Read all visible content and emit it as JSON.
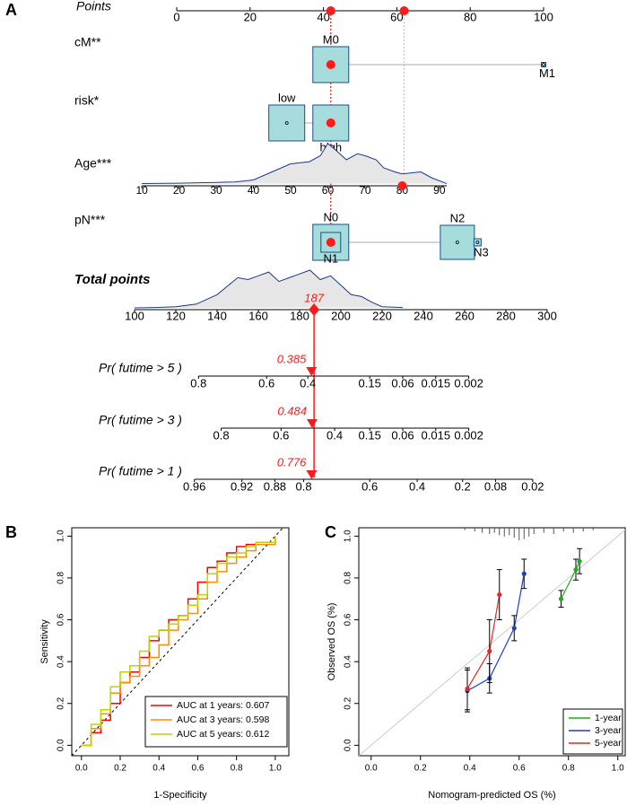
{
  "chart_data": [
    {
      "type": "nomogram",
      "panel": "A",
      "box_color": "#a6dcdc",
      "box_edge": "#1a4f8a",
      "density_color": "#1a3a8a",
      "density_fill": "#e6e6e6",
      "marker_color": "#ff1a1a",
      "points": {
        "name": "Points",
        "xlim": [
          0,
          100
        ],
        "ticks": [
          0,
          20,
          40,
          60,
          80,
          100
        ],
        "marks": [
          42,
          62
        ]
      },
      "variables": [
        {
          "name": "cM**",
          "levels": [
            "M0",
            "M1"
          ],
          "points": [
            42,
            100
          ],
          "sizes": [
            40,
            5
          ],
          "selected": 42
        },
        {
          "name": "risk*",
          "levels": [
            "low",
            "high"
          ],
          "points": [
            30,
            42
          ],
          "sizes": [
            40,
            40
          ],
          "selected": 42
        },
        {
          "name": "Age***",
          "ticks": [
            10,
            20,
            30,
            40,
            50,
            60,
            70,
            80,
            90
          ],
          "points": [
            -9.5,
            71.6
          ],
          "selected": 80,
          "density": {
            "x": [
              10,
              20,
              30,
              35,
              40,
              45,
              50,
              55,
              58,
              60,
              62,
              65,
              68,
              70,
              73,
              75,
              78,
              80,
              85,
              88,
              92
            ],
            "values": [
              0.01,
              0.02,
              0.04,
              0.05,
              0.1,
              0.3,
              0.5,
              0.55,
              0.7,
              1.0,
              0.85,
              0.6,
              0.75,
              0.7,
              0.6,
              0.4,
              0.3,
              0.25,
              0.3,
              0.15,
              0.01
            ]
          }
        },
        {
          "name": "pN***",
          "levels": [
            "N0",
            "N1",
            "N2",
            "N3"
          ],
          "points": [
            42,
            42,
            76.5,
            82
          ],
          "sizes": [
            40,
            22,
            38,
            8
          ],
          "selected": 42
        }
      ],
      "total": {
        "name": "Total points",
        "xlim": [
          100,
          300
        ],
        "ticks": [
          100,
          120,
          140,
          160,
          180,
          200,
          220,
          240,
          260,
          280,
          300
        ],
        "value": 187,
        "density": {
          "x": [
            100,
            110,
            120,
            130,
            140,
            150,
            155,
            160,
            165,
            170,
            175,
            180,
            185,
            190,
            195,
            200,
            205,
            210,
            215,
            220,
            230
          ],
          "values": [
            0,
            0.01,
            0.03,
            0.1,
            0.35,
            0.8,
            0.75,
            0.85,
            0.95,
            0.7,
            0.8,
            0.9,
            1.0,
            0.75,
            0.85,
            0.6,
            0.35,
            0.3,
            0.15,
            0.03,
            0.01
          ]
        }
      },
      "probabilities": [
        {
          "name": "Pr( futime > 5 )",
          "value": 0.385,
          "ticks": [
            0.8,
            0.6,
            0.4,
            0.15,
            0.06,
            0.015,
            0.002
          ],
          "total_points": [
            131,
            164,
            184,
            214,
            230,
            246,
            262
          ]
        },
        {
          "name": "Pr( futime > 3 )",
          "value": 0.484,
          "ticks": [
            0.8,
            0.6,
            0.4,
            0.15,
            0.06,
            0.015,
            0.002
          ],
          "total_points": [
            142,
            171,
            197,
            214,
            230,
            246,
            262
          ]
        },
        {
          "name": "Pr( futime > 1 )",
          "value": 0.776,
          "ticks": [
            0.96,
            0.92,
            0.88,
            0.8,
            0.6,
            0.4,
            0.2,
            0.08,
            0.02
          ],
          "total_points": [
            129,
            152,
            168,
            182,
            214,
            237,
            259,
            275,
            293
          ]
        }
      ]
    },
    {
      "type": "line",
      "panel": "B",
      "x_label": "1-Specificity",
      "y_label": "Sensitivity",
      "xlim": [
        -0.05,
        1.07
      ],
      "ylim": [
        -0.05,
        1.04
      ],
      "xticks": [
        {
          "value": 0,
          "label": "0.0"
        },
        0.2,
        0.4,
        0.6,
        0.8,
        {
          "value": 1,
          "label": "1.0"
        }
      ],
      "yticks": [
        {
          "value": 0,
          "label": "0.0"
        },
        0.2,
        0.4,
        0.6,
        0.8,
        {
          "value": 1,
          "label": "1.0"
        }
      ],
      "x": [
        0,
        0.05,
        0.1,
        0.15,
        0.2,
        0.25,
        0.3,
        0.35,
        0.4,
        0.45,
        0.5,
        0.55,
        0.6,
        0.65,
        0.7,
        0.75,
        0.8,
        0.85,
        0.9,
        1
      ],
      "series": [
        {
          "name": "AUC at 1 years: 0.607",
          "color": "#ff0000",
          "values": [
            0,
            0.06,
            0.12,
            0.2,
            0.3,
            0.35,
            0.42,
            0.5,
            0.55,
            0.6,
            0.62,
            0.7,
            0.78,
            0.85,
            0.88,
            0.92,
            0.95,
            0.96,
            0.97,
            1
          ]
        },
        {
          "name": "AUC at 3 years: 0.598",
          "color": "#ff8c00",
          "values": [
            0,
            0.08,
            0.15,
            0.25,
            0.3,
            0.33,
            0.38,
            0.42,
            0.48,
            0.55,
            0.6,
            0.63,
            0.7,
            0.78,
            0.83,
            0.87,
            0.9,
            0.93,
            0.96,
            1
          ]
        },
        {
          "name": "AUC at 5 years: 0.612",
          "color": "#bcd400",
          "values": [
            0,
            0.1,
            0.17,
            0.28,
            0.35,
            0.38,
            0.45,
            0.52,
            0.55,
            0.58,
            0.62,
            0.67,
            0.72,
            0.82,
            0.87,
            0.9,
            0.92,
            0.95,
            0.97,
            1
          ]
        }
      ]
    },
    {
      "type": "calibration",
      "panel": "C",
      "x_label": "Nomogram-predicted OS (%)",
      "y_label": "Observed OS (%)",
      "xlim": [
        -0.05,
        1.03
      ],
      "ylim": [
        -0.05,
        1.04
      ],
      "xticks": [
        {
          "value": 0,
          "label": "0.0"
        },
        0.2,
        0.4,
        0.6,
        0.8,
        {
          "value": 1,
          "label": "1.0"
        }
      ],
      "yticks": [
        {
          "value": 0,
          "label": "0.0"
        },
        0.2,
        0.4,
        0.6,
        0.8,
        {
          "value": 1,
          "label": "1.0"
        }
      ],
      "rug": {
        "x": [
          0.38,
          0.42,
          0.45,
          0.48,
          0.5,
          0.52,
          0.54,
          0.56,
          0.58,
          0.6,
          0.62,
          0.64,
          0.66,
          0.7,
          0.74,
          0.78,
          0.82,
          0.86,
          0.9
        ],
        "values": [
          0.2,
          0.3,
          0.4,
          0.5,
          0.4,
          0.6,
          0.7,
          0.6,
          0.8,
          1.0,
          0.9,
          0.7,
          0.5,
          0.4,
          0.5,
          0.3,
          0.4,
          0.3,
          0.2
        ]
      },
      "series": [
        {
          "name": "1-year",
          "color": "#22aa22",
          "x": [
            0.77,
            0.83,
            0.845
          ],
          "values": [
            0.7,
            0.84,
            0.88
          ],
          "errors": [
            0.04,
            0.05,
            0.06
          ]
        },
        {
          "name": "3-year",
          "color": "#1f3fbf",
          "x": [
            0.39,
            0.48,
            0.58,
            0.62
          ],
          "values": [
            0.26,
            0.32,
            0.56,
            0.82
          ],
          "errors": [
            0.1,
            0.07,
            0.06,
            0.07
          ]
        },
        {
          "name": "5-year",
          "color": "#ee2222",
          "x": [
            0.39,
            0.48,
            0.52
          ],
          "values": [
            0.27,
            0.45,
            0.72
          ],
          "errors": [
            0.1,
            0.15,
            0.12
          ]
        }
      ]
    }
  ]
}
